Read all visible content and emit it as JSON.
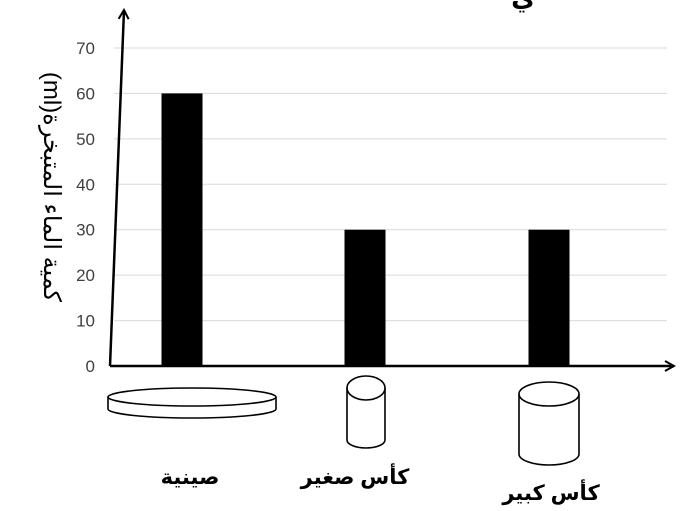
{
  "chart_data": {
    "type": "bar",
    "title_fragment": "ي",
    "ylabel": "كمية الماء المتبخرة(ml)",
    "xlabel": "",
    "categories": [
      "صينية",
      "كأس صغير",
      "كأس كبير"
    ],
    "category_icons": [
      "tray-icon",
      "small-cup-icon",
      "large-cup-icon"
    ],
    "values": [
      60,
      30,
      30
    ],
    "ylim": [
      0,
      70
    ],
    "yticks": [
      "0",
      "10",
      "20",
      "30",
      "40",
      "50",
      "60",
      "70"
    ],
    "grid": true,
    "legend": "none",
    "colors": {
      "bar": "#000000",
      "grid": "#d9d9d9",
      "axis": "#000000"
    }
  }
}
